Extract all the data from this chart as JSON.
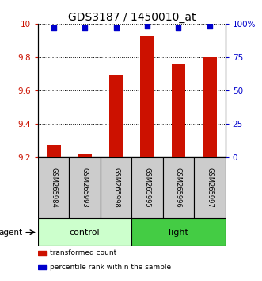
{
  "title": "GDS3187 / 1450010_at",
  "samples": [
    "GSM265984",
    "GSM265993",
    "GSM265998",
    "GSM265995",
    "GSM265996",
    "GSM265997"
  ],
  "bar_values": [
    9.27,
    9.22,
    9.69,
    9.93,
    9.76,
    9.8
  ],
  "bar_base": 9.2,
  "percentile_values": [
    97,
    97,
    97,
    98,
    97,
    98.5
  ],
  "ylim_left": [
    9.2,
    10.0
  ],
  "ylim_right": [
    0,
    100
  ],
  "yticks_left": [
    9.2,
    9.4,
    9.6,
    9.8,
    10.0
  ],
  "ytick_labels_left": [
    "9.2",
    "9.4",
    "9.6",
    "9.8",
    "10"
  ],
  "yticks_right": [
    0,
    25,
    50,
    75,
    100
  ],
  "ytick_labels_right": [
    "0",
    "25",
    "50",
    "75",
    "100%"
  ],
  "bar_color": "#cc1100",
  "dot_color": "#0000cc",
  "grid_color": "#000000",
  "groups": [
    {
      "label": "control",
      "indices": [
        0,
        1,
        2
      ],
      "color": "#ccffcc"
    },
    {
      "label": "light",
      "indices": [
        3,
        4,
        5
      ],
      "color": "#44cc44"
    }
  ],
  "agent_label": "agent",
  "legend_bar_label": "transformed count",
  "legend_dot_label": "percentile rank within the sample",
  "left_axis_color": "#cc1100",
  "right_axis_color": "#0000cc",
  "sample_box_color": "#cccccc",
  "background_color": "#ffffff",
  "title_fontsize": 10,
  "tick_fontsize": 7.5,
  "sample_fontsize": 6,
  "group_fontsize": 8,
  "legend_fontsize": 6.5
}
